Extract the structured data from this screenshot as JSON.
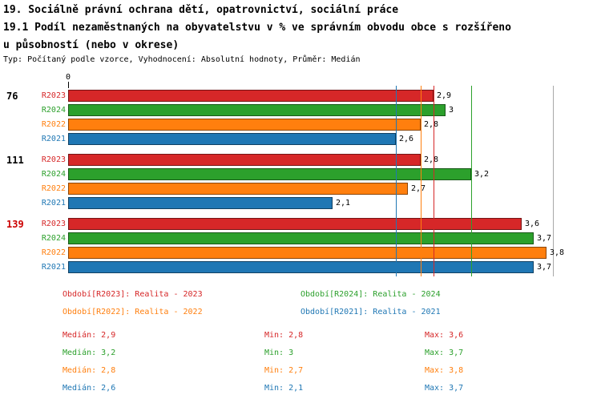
{
  "header": {
    "title_line1": "19. Sociálně právní ochrana dětí, opatrovnictví, sociální práce",
    "title_line2": "19.1 Podíl nezaměstnaných na obyvatelstvu v % ve správním obvodu obce s rozšířeno",
    "title_line3": "u působností (nebo v okrese)",
    "subtitle": "Typ: Počítaný podle vzorce, Vyhodnocení: Absolutní hodnoty, Průměr: Medián"
  },
  "chart_data": {
    "type": "bar",
    "orientation": "horizontal",
    "axis": {
      "origin_label": "0",
      "xmin": 0,
      "xmax": 3.85
    },
    "series_colors": {
      "R2023": "#d62728",
      "R2024": "#2ca02c",
      "R2022": "#ff7f0e",
      "R2021": "#1f77b4"
    },
    "groups": [
      {
        "label": "76",
        "label_color": "#000000",
        "bars": [
          {
            "series": "R2023",
            "value": 2.9,
            "value_label": "2,9"
          },
          {
            "series": "R2024",
            "value": 3.0,
            "value_label": "3"
          },
          {
            "series": "R2022",
            "value": 2.8,
            "value_label": "2,8"
          },
          {
            "series": "R2021",
            "value": 2.6,
            "value_label": "2,6"
          }
        ]
      },
      {
        "label": "111",
        "label_color": "#000000",
        "bars": [
          {
            "series": "R2023",
            "value": 2.8,
            "value_label": "2,8"
          },
          {
            "series": "R2024",
            "value": 3.2,
            "value_label": "3,2"
          },
          {
            "series": "R2022",
            "value": 2.7,
            "value_label": "2,7"
          },
          {
            "series": "R2021",
            "value": 2.1,
            "value_label": "2,1"
          }
        ]
      },
      {
        "label": "139",
        "label_color": "#cc0000",
        "bars": [
          {
            "series": "R2023",
            "value": 3.6,
            "value_label": "3,6"
          },
          {
            "series": "R2024",
            "value": 3.7,
            "value_label": "3,7"
          },
          {
            "series": "R2022",
            "value": 3.8,
            "value_label": "3,8"
          },
          {
            "series": "R2021",
            "value": 3.7,
            "value_label": "3,7"
          }
        ]
      }
    ],
    "medians": [
      {
        "series": "R2023",
        "value": 2.9
      },
      {
        "series": "R2024",
        "value": 3.2
      },
      {
        "series": "R2022",
        "value": 2.8
      },
      {
        "series": "R2021",
        "value": 2.6
      }
    ],
    "legend": [
      {
        "label": "Období[R2023]: Realita - 2023",
        "color": "#d62728"
      },
      {
        "label": "Období[R2024]: Realita - 2024",
        "color": "#2ca02c"
      },
      {
        "label": "Období[R2022]: Realita - 2022",
        "color": "#ff7f0e"
      },
      {
        "label": "Období[R2021]: Realita - 2021",
        "color": "#1f77b4"
      }
    ],
    "stats": [
      {
        "median": "Medián: 2,9",
        "min": "Min: 2,8",
        "max": "Max: 3,6",
        "color": "#d62728"
      },
      {
        "median": "Medián: 3,2",
        "min": "Min: 3",
        "max": "Max: 3,7",
        "color": "#2ca02c"
      },
      {
        "median": "Medián: 2,8",
        "min": "Min: 2,7",
        "max": "Max: 3,8",
        "color": "#ff7f0e"
      },
      {
        "median": "Medián: 2,6",
        "min": "Min: 2,1",
        "max": "Max: 3,7",
        "color": "#1f77b4"
      }
    ]
  }
}
